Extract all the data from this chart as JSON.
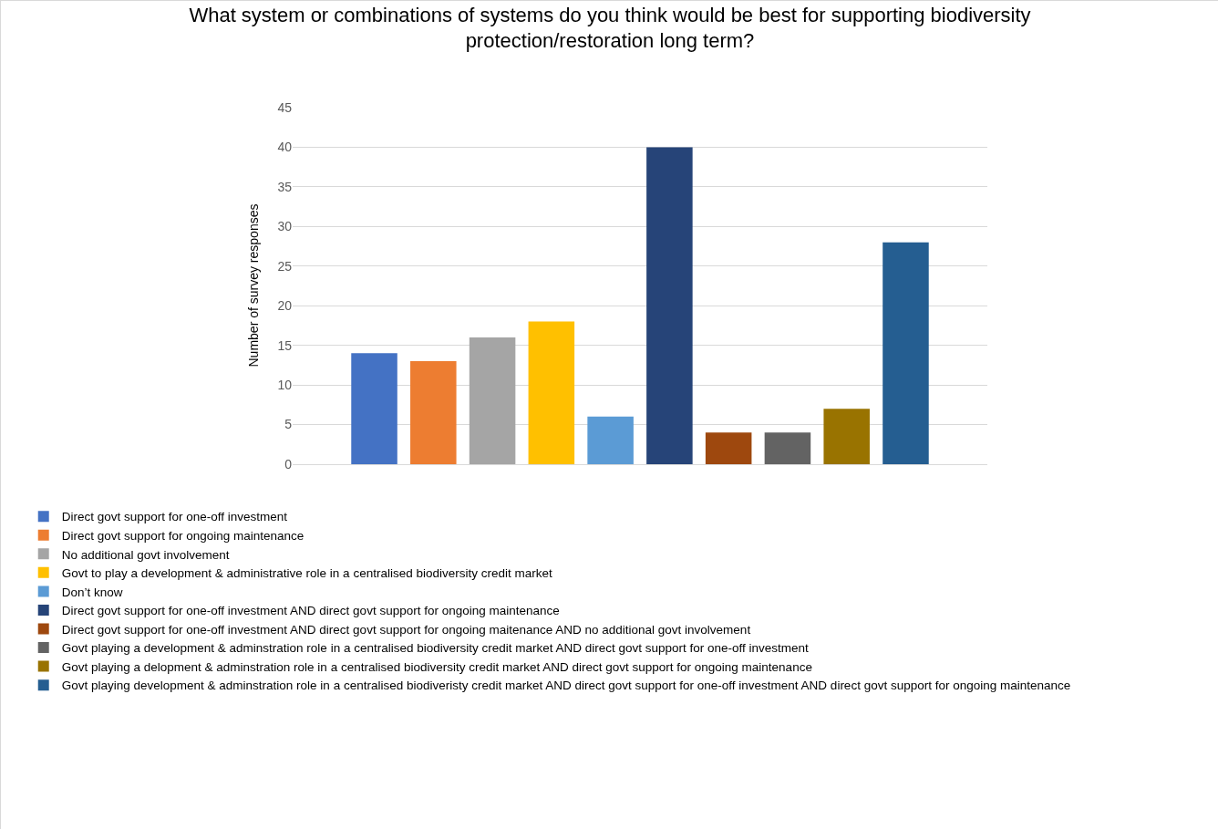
{
  "chart_data": {
    "type": "bar",
    "title": "What system or combinations of systems do you think would be best for supporting biodiversity protection/restoration long term?",
    "ylabel": "Number of survey responses",
    "categories": [
      null
    ],
    "series": [
      {
        "name": "Direct govt support for one-off investment",
        "color": "#4472c4",
        "values": [
          14
        ]
      },
      {
        "name": "Direct govt support for ongoing maintenance",
        "color": "#ed7d31",
        "values": [
          13
        ]
      },
      {
        "name": "No additional govt involvement",
        "color": "#a5a5a5",
        "values": [
          16
        ]
      },
      {
        "name": "Govt to play a development & administrative role in a centralised biodiversity credit market",
        "color": "#ffc000",
        "values": [
          18
        ]
      },
      {
        "name": "Don’t know",
        "color": "#5b9bd5",
        "values": [
          6
        ]
      },
      {
        "name": "Direct govt support for one-off investment AND direct govt support for ongoing maintenance",
        "color": "#264478",
        "values": [
          40
        ]
      },
      {
        "name": "Direct govt support for one-off investment AND direct govt support for ongoing maitenance AND no additional govt involvement",
        "color": "#9e480e",
        "values": [
          4
        ]
      },
      {
        "name": "Govt playing a development & adminstration role in a centralised biodiversity credit market AND direct govt support for one-off investment",
        "color": "#636363",
        "values": [
          4
        ]
      },
      {
        "name": "Govt playing a delopment & adminstration role in a centralised biodiversity credit market AND direct govt support for ongoing maintenance",
        "color": "#997300",
        "values": [
          7
        ]
      },
      {
        "name": "Govt playing development & adminstration role in a centralised biodiveristy credit market AND direct govt support for one-off investment AND direct govt support for ongoing maintenance",
        "color": "#255e91",
        "values": [
          28
        ]
      }
    ],
    "ylim": [
      0,
      45
    ],
    "yticks": [
      0,
      5,
      10,
      15,
      20,
      25,
      30,
      35,
      40,
      45
    ],
    "grid": "y",
    "legend": "bottom"
  }
}
